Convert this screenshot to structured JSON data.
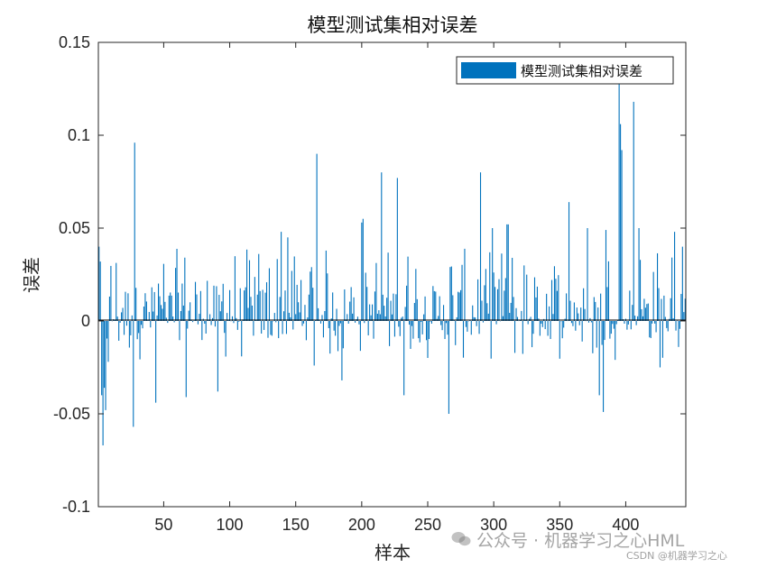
{
  "chart_data": {
    "type": "bar",
    "title": "模型测试集相对误差",
    "xlabel": "样本",
    "ylabel": "误差",
    "legend": {
      "label": "模型测试集相对误差",
      "placement": "top-right"
    },
    "xlim": [
      0.5,
      445.5
    ],
    "ylim": [
      -0.1,
      0.15
    ],
    "xticks": [
      50,
      100,
      150,
      200,
      250,
      300,
      350,
      400
    ],
    "yticks": [
      -0.1,
      -0.05,
      0,
      0.05,
      0.1,
      0.15
    ],
    "ytick_labels": [
      "-0.1",
      "-0.05",
      "0",
      "0.05",
      "0.1",
      "0.15"
    ],
    "grid": false,
    "colors": {
      "bar": "#0072BD",
      "axis": "#262626"
    },
    "sample_count": 445,
    "highlighted": [
      {
        "x": 1,
        "y": 0.04
      },
      {
        "x": 2,
        "y": 0.032
      },
      {
        "x": 3,
        "y": -0.04
      },
      {
        "x": 4,
        "y": -0.067
      },
      {
        "x": 5,
        "y": -0.036
      },
      {
        "x": 6,
        "y": -0.048
      },
      {
        "x": 8,
        "y": -0.022
      },
      {
        "x": 28,
        "y": 0.096
      },
      {
        "x": 27,
        "y": -0.057
      },
      {
        "x": 44,
        "y": -0.044
      },
      {
        "x": 67,
        "y": -0.041
      },
      {
        "x": 91,
        "y": -0.038
      },
      {
        "x": 139,
        "y": 0.048
      },
      {
        "x": 144,
        "y": 0.045
      },
      {
        "x": 166,
        "y": 0.09
      },
      {
        "x": 164,
        "y": -0.024
      },
      {
        "x": 185,
        "y": -0.032
      },
      {
        "x": 200,
        "y": 0.053
      },
      {
        "x": 201,
        "y": 0.055
      },
      {
        "x": 215,
        "y": 0.08
      },
      {
        "x": 227,
        "y": 0.077
      },
      {
        "x": 232,
        "y": -0.04
      },
      {
        "x": 266,
        "y": -0.05
      },
      {
        "x": 290,
        "y": 0.08
      },
      {
        "x": 299,
        "y": 0.05
      },
      {
        "x": 310,
        "y": 0.052
      },
      {
        "x": 311,
        "y": 0.052
      },
      {
        "x": 357,
        "y": 0.064
      },
      {
        "x": 371,
        "y": 0.05
      },
      {
        "x": 380,
        "y": -0.04
      },
      {
        "x": 383,
        "y": -0.049
      },
      {
        "x": 385,
        "y": 0.049
      },
      {
        "x": 395,
        "y": 0.128
      },
      {
        "x": 396,
        "y": 0.106
      },
      {
        "x": 397,
        "y": 0.092
      },
      {
        "x": 406,
        "y": 0.118
      },
      {
        "x": 410,
        "y": 0.05
      },
      {
        "x": 426,
        "y": -0.025
      },
      {
        "x": 437,
        "y": 0.048
      },
      {
        "x": 440,
        "y": -0.014
      },
      {
        "x": 443,
        "y": 0.04
      },
      {
        "x": 445,
        "y": 0.012
      }
    ]
  },
  "watermark": {
    "main": "公众号 · 机器学习之心HML",
    "sub": "CSDN @机器学习之心"
  }
}
